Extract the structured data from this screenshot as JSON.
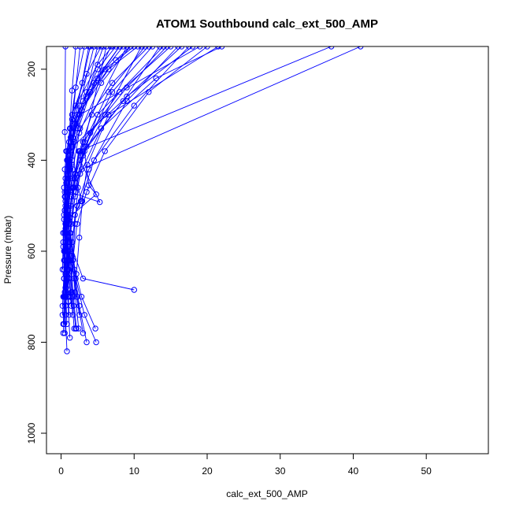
{
  "colors": {
    "series": "#0000ff",
    "frame": "#000000",
    "background": "#ffffff"
  },
  "chart_data": {
    "type": "line",
    "title": "ATOM1 Southbound calc_ext_500_AMP",
    "xlabel": "calc_ext_500_AMP",
    "ylabel": "Pressure (mbar)",
    "xlim": [
      -2,
      58.5
    ],
    "ylim": [
      1045,
      150
    ],
    "y_reversed": true,
    "x_ticks": [
      "0",
      "10",
      "20",
      "30",
      "40",
      "50"
    ],
    "y_ticks": [
      "200",
      "400",
      "600",
      "800",
      "1000"
    ],
    "grid": false,
    "legend": "none",
    "markers": "open-circle",
    "series": [
      {
        "points": [
          [
            0.3,
            780
          ],
          [
            0.5,
            700
          ],
          [
            0.4,
            600
          ],
          [
            0.6,
            500
          ],
          [
            0.5,
            420
          ],
          [
            1.2,
            330
          ],
          [
            2.0,
            240
          ],
          [
            3.2,
            150
          ]
        ]
      },
      {
        "points": [
          [
            0.8,
            820
          ],
          [
            0.6,
            740
          ],
          [
            0.9,
            650
          ],
          [
            0.5,
            560
          ],
          [
            0.8,
            470
          ],
          [
            1.1,
            390
          ],
          [
            2.5,
            280
          ],
          [
            4.5,
            150
          ]
        ]
      },
      {
        "points": [
          [
            1.2,
            790
          ],
          [
            0.9,
            700
          ],
          [
            1.1,
            620
          ],
          [
            0.7,
            530
          ],
          [
            1.3,
            440
          ],
          [
            1.8,
            360
          ],
          [
            4.0,
            250
          ],
          [
            6.8,
            150
          ]
        ]
      },
      {
        "points": [
          [
            2.0,
            770
          ],
          [
            1.5,
            690
          ],
          [
            1.2,
            600
          ],
          [
            1.0,
            510
          ],
          [
            1.6,
            420
          ],
          [
            2.5,
            340
          ],
          [
            5.5,
            230
          ],
          [
            9.5,
            150
          ]
        ]
      },
      {
        "points": [
          [
            3.5,
            800
          ],
          [
            2.5,
            720
          ],
          [
            1.8,
            640
          ],
          [
            1.2,
            560
          ],
          [
            2.0,
            470
          ],
          [
            3.0,
            380
          ],
          [
            7.0,
            250
          ],
          [
            12.5,
            150
          ]
        ]
      },
      {
        "points": [
          [
            4.8,
            800
          ],
          [
            3.2,
            740
          ],
          [
            2.0,
            660
          ],
          [
            1.5,
            580
          ],
          [
            2.2,
            500
          ],
          [
            3.8,
            420
          ],
          [
            9.0,
            270
          ],
          [
            16.0,
            150
          ]
        ]
      },
      {
        "points": [
          [
            4.7,
            770
          ],
          [
            2.8,
            700
          ],
          [
            1.6,
            620
          ],
          [
            2.2,
            540
          ],
          [
            3.5,
            470
          ],
          [
            6.0,
            380
          ],
          [
            12.0,
            250
          ],
          [
            20.0,
            150
          ]
        ]
      },
      {
        "points": [
          [
            0.4,
            760
          ],
          [
            0.7,
            680
          ],
          [
            1.0,
            590
          ],
          [
            1.3,
            500
          ],
          [
            2.0,
            430
          ],
          [
            4.0,
            340
          ],
          [
            9.0,
            240
          ],
          [
            14.5,
            150
          ]
        ]
      },
      {
        "points": [
          [
            3.0,
            780
          ],
          [
            2.2,
            700
          ],
          [
            1.4,
            610
          ],
          [
            1.9,
            520
          ],
          [
            2.7,
            490
          ],
          [
            4.5,
            400
          ],
          [
            10.0,
            280
          ],
          [
            17.5,
            150
          ]
        ]
      },
      {
        "points": [
          [
            2.5,
            740
          ],
          [
            1.8,
            660
          ],
          [
            0.9,
            580
          ],
          [
            0.6,
            480
          ],
          [
            1.0,
            400
          ],
          [
            2.0,
            320
          ],
          [
            5.0,
            220
          ],
          [
            8.0,
            150
          ]
        ]
      },
      {
        "points": [
          [
            0.2,
            720
          ],
          [
            0.4,
            640
          ],
          [
            0.3,
            560
          ],
          [
            0.5,
            470
          ],
          [
            0.8,
            380
          ],
          [
            1.5,
            300
          ],
          [
            3.5,
            210
          ],
          [
            5.5,
            150
          ]
        ]
      },
      {
        "points": [
          [
            1.6,
            740
          ],
          [
            1.1,
            660
          ],
          [
            0.8,
            570
          ],
          [
            1.4,
            480
          ],
          [
            2.6,
            430
          ],
          [
            5.5,
            330
          ],
          [
            13.0,
            220
          ],
          [
            22.0,
            150
          ]
        ]
      },
      {
        "points": [
          [
            0.6,
            700
          ],
          [
            1.0,
            700
          ],
          [
            0.7,
            610
          ],
          [
            0.9,
            510
          ],
          [
            1.5,
            450
          ],
          [
            3.0,
            360
          ],
          [
            8.0,
            250
          ],
          [
            15.0,
            150
          ]
        ]
      },
      {
        "points": [
          [
            10.0,
            685
          ],
          [
            3.0,
            660
          ],
          [
            1.2,
            580
          ],
          [
            0.8,
            490
          ],
          [
            1.2,
            410
          ],
          [
            2.6,
            330
          ],
          [
            7.0,
            230
          ],
          [
            12.0,
            150
          ]
        ]
      },
      {
        "points": [
          [
            0.3,
            760
          ],
          [
            0.6,
            650
          ],
          [
            0.5,
            560
          ],
          [
            0.7,
            470
          ],
          [
            1.0,
            380
          ],
          [
            2.2,
            300
          ],
          [
            5.0,
            200
          ],
          [
            7.5,
            150
          ]
        ]
      },
      {
        "points": [
          [
            2.1,
            770
          ],
          [
            1.7,
            700
          ],
          [
            1.3,
            620
          ],
          [
            1.0,
            530
          ],
          [
            1.7,
            460
          ],
          [
            3.5,
            370
          ],
          [
            9.0,
            260
          ],
          [
            18.0,
            150
          ]
        ]
      },
      {
        "points": [
          [
            1.0,
            710
          ],
          [
            0.8,
            630
          ],
          [
            0.6,
            540
          ],
          [
            0.9,
            450
          ],
          [
            1.4,
            370
          ],
          [
            2.8,
            290
          ],
          [
            6.5,
            200
          ],
          [
            10.5,
            150
          ]
        ]
      },
      {
        "points": [
          [
            0.5,
            690
          ],
          [
            0.7,
            610
          ],
          [
            0.4,
            520
          ],
          [
            0.6,
            440
          ],
          [
            1.1,
            360
          ],
          [
            2.0,
            280
          ],
          [
            5.0,
            190
          ],
          [
            7.0,
            150
          ]
        ]
      },
      {
        "points": [
          [
            1.4,
            720
          ],
          [
            1.0,
            640
          ],
          [
            0.7,
            560
          ],
          [
            1.2,
            470
          ],
          [
            5.3,
            492
          ],
          [
            2.6,
            400
          ],
          [
            6.0,
            300
          ],
          [
            11.0,
            150
          ]
        ]
      },
      {
        "points": [
          [
            0.7,
            700
          ],
          [
            0.5,
            620
          ],
          [
            0.8,
            530
          ],
          [
            4.8,
            475
          ],
          [
            3.8,
            455
          ],
          [
            3.2,
            380
          ],
          [
            8.5,
            270
          ],
          [
            13.5,
            150
          ]
        ]
      },
      {
        "points": [
          [
            0.9,
            650
          ],
          [
            0.6,
            580
          ],
          [
            0.5,
            510
          ],
          [
            2.8,
            490
          ],
          [
            1.9,
            430
          ],
          [
            1.6,
            340
          ],
          [
            4.5,
            230
          ],
          [
            8.5,
            150
          ]
        ]
      },
      {
        "points": [
          [
            0.4,
            620
          ],
          [
            0.6,
            550
          ],
          [
            1.0,
            470
          ],
          [
            1.5,
            400
          ],
          [
            1.8,
            320
          ],
          [
            3.5,
            250
          ],
          [
            8.0,
            150
          ]
        ]
      },
      {
        "points": [
          [
            0.6,
            600
          ],
          [
            0.4,
            530
          ],
          [
            0.7,
            450
          ],
          [
            1.2,
            380
          ],
          [
            2.5,
            300
          ],
          [
            6.0,
            200
          ],
          [
            10.0,
            150
          ]
        ]
      },
      {
        "points": [
          [
            0.3,
            590
          ],
          [
            0.5,
            510
          ],
          [
            0.8,
            430
          ],
          [
            1.4,
            360
          ],
          [
            3.0,
            270
          ],
          [
            7.5,
            180
          ],
          [
            9.5,
            150
          ]
        ]
      },
      {
        "points": [
          [
            0.5,
            700
          ],
          [
            0.8,
            620
          ],
          [
            1.1,
            540
          ],
          [
            1.6,
            460
          ],
          [
            2.4,
            380
          ],
          [
            37.0,
            150
          ]
        ]
      },
      {
        "points": [
          [
            0.6,
            720
          ],
          [
            0.9,
            640
          ],
          [
            1.3,
            560
          ],
          [
            1.9,
            480
          ],
          [
            2.8,
            420
          ],
          [
            41.0,
            150
          ]
        ]
      },
      {
        "points": [
          [
            0.4,
            700
          ],
          [
            0.7,
            610
          ],
          [
            1.0,
            520
          ],
          [
            1.3,
            430
          ],
          [
            1.6,
            370
          ],
          [
            16.5,
            150
          ]
        ]
      },
      {
        "points": [
          [
            0.7,
            680
          ],
          [
            0.5,
            600
          ],
          [
            0.9,
            510
          ],
          [
            1.2,
            420
          ],
          [
            1.5,
            310
          ],
          [
            19.0,
            150
          ]
        ]
      },
      {
        "points": [
          [
            0.2,
            740
          ],
          [
            0.4,
            660
          ],
          [
            0.3,
            580
          ],
          [
            0.6,
            490
          ],
          [
            0.9,
            400
          ],
          [
            1.5,
            247
          ],
          [
            2.0,
            150
          ]
        ]
      },
      {
        "points": [
          [
            0.3,
            700
          ],
          [
            0.5,
            620
          ],
          [
            0.6,
            540
          ],
          [
            0.4,
            460
          ],
          [
            0.7,
            380
          ],
          [
            0.5,
            338
          ],
          [
            0.6,
            150
          ]
        ]
      },
      {
        "points": [
          [
            0.8,
            760
          ],
          [
            0.6,
            680
          ],
          [
            0.9,
            600
          ],
          [
            0.7,
            520
          ],
          [
            1.0,
            440
          ],
          [
            1.3,
            350
          ],
          [
            2.6,
            150
          ]
        ]
      },
      {
        "points": [
          [
            1.1,
            740
          ],
          [
            0.9,
            660
          ],
          [
            0.6,
            580
          ],
          [
            0.8,
            500
          ],
          [
            1.1,
            410
          ],
          [
            1.7,
            330
          ],
          [
            3.8,
            150
          ]
        ]
      },
      {
        "points": [
          [
            1.8,
            770
          ],
          [
            1.4,
            690
          ],
          [
            1.0,
            600
          ],
          [
            0.7,
            510
          ],
          [
            1.2,
            420
          ],
          [
            2.3,
            330
          ],
          [
            5.0,
            150
          ]
        ]
      },
      {
        "points": [
          [
            2.4,
            770
          ],
          [
            1.9,
            690
          ],
          [
            1.5,
            610
          ],
          [
            1.2,
            520
          ],
          [
            1.9,
            440
          ],
          [
            3.2,
            360
          ],
          [
            6.2,
            150
          ]
        ]
      },
      {
        "points": [
          [
            0.5,
            780
          ],
          [
            0.7,
            700
          ],
          [
            0.9,
            620
          ],
          [
            1.1,
            540
          ],
          [
            1.6,
            460
          ],
          [
            2.6,
            380
          ],
          [
            6.5,
            250
          ],
          [
            11.5,
            150
          ]
        ]
      },
      {
        "points": [
          [
            0.9,
            700
          ],
          [
            1.2,
            620
          ],
          [
            1.4,
            540
          ],
          [
            1.8,
            460
          ],
          [
            2.5,
            380
          ],
          [
            4.2,
            300
          ],
          [
            9.0,
            150
          ]
        ]
      },
      {
        "points": [
          [
            0.2,
            640
          ],
          [
            0.3,
            560
          ],
          [
            0.5,
            480
          ],
          [
            0.8,
            400
          ],
          [
            1.3,
            330
          ],
          [
            2.9,
            230
          ],
          [
            4.0,
            150
          ]
        ]
      },
      {
        "points": [
          [
            0.4,
            660
          ],
          [
            0.6,
            580
          ],
          [
            0.8,
            500
          ],
          [
            1.1,
            420
          ],
          [
            1.6,
            350
          ],
          [
            3.4,
            260
          ],
          [
            5.8,
            150
          ]
        ]
      },
      {
        "points": [
          [
            1.3,
            700
          ],
          [
            1.6,
            620
          ],
          [
            1.9,
            540
          ],
          [
            2.3,
            460
          ],
          [
            3.0,
            390
          ],
          [
            5.0,
            300
          ],
          [
            14.0,
            150
          ]
        ]
      },
      {
        "points": [
          [
            1.7,
            720
          ],
          [
            2.1,
            650
          ],
          [
            2.5,
            570
          ],
          [
            2.9,
            490
          ],
          [
            3.6,
            410
          ],
          [
            6.5,
            300
          ],
          [
            21.5,
            150
          ]
        ]
      }
    ]
  }
}
